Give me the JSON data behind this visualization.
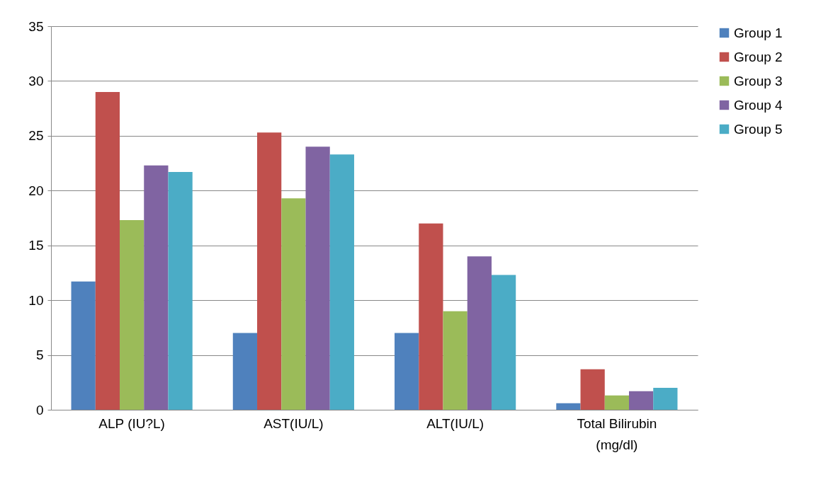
{
  "chart_data": {
    "type": "bar",
    "categories": [
      "ALP (IU?L)",
      "AST(IU/L)",
      "ALT(IU/L)",
      "Total Bilirubin (mg/dl)"
    ],
    "series": [
      {
        "name": "Group 1",
        "color": "#4f81bd",
        "values": [
          11.7,
          7.0,
          7.0,
          0.6
        ]
      },
      {
        "name": "Group 2",
        "color": "#c0504d",
        "values": [
          29.0,
          25.3,
          17.0,
          3.7
        ]
      },
      {
        "name": "Group 3",
        "color": "#9bbb59",
        "values": [
          17.3,
          19.3,
          9.0,
          1.3
        ]
      },
      {
        "name": "Group 4",
        "color": "#8064a2",
        "values": [
          22.3,
          24.0,
          14.0,
          1.7
        ]
      },
      {
        "name": "Group 5",
        "color": "#4bacc6",
        "values": [
          21.7,
          23.3,
          12.3,
          2.0
        ]
      }
    ],
    "ylim": [
      0,
      35
    ],
    "yticks": [
      0,
      5,
      10,
      15,
      20,
      25,
      30,
      35
    ],
    "grid": "y",
    "legend": "right"
  }
}
